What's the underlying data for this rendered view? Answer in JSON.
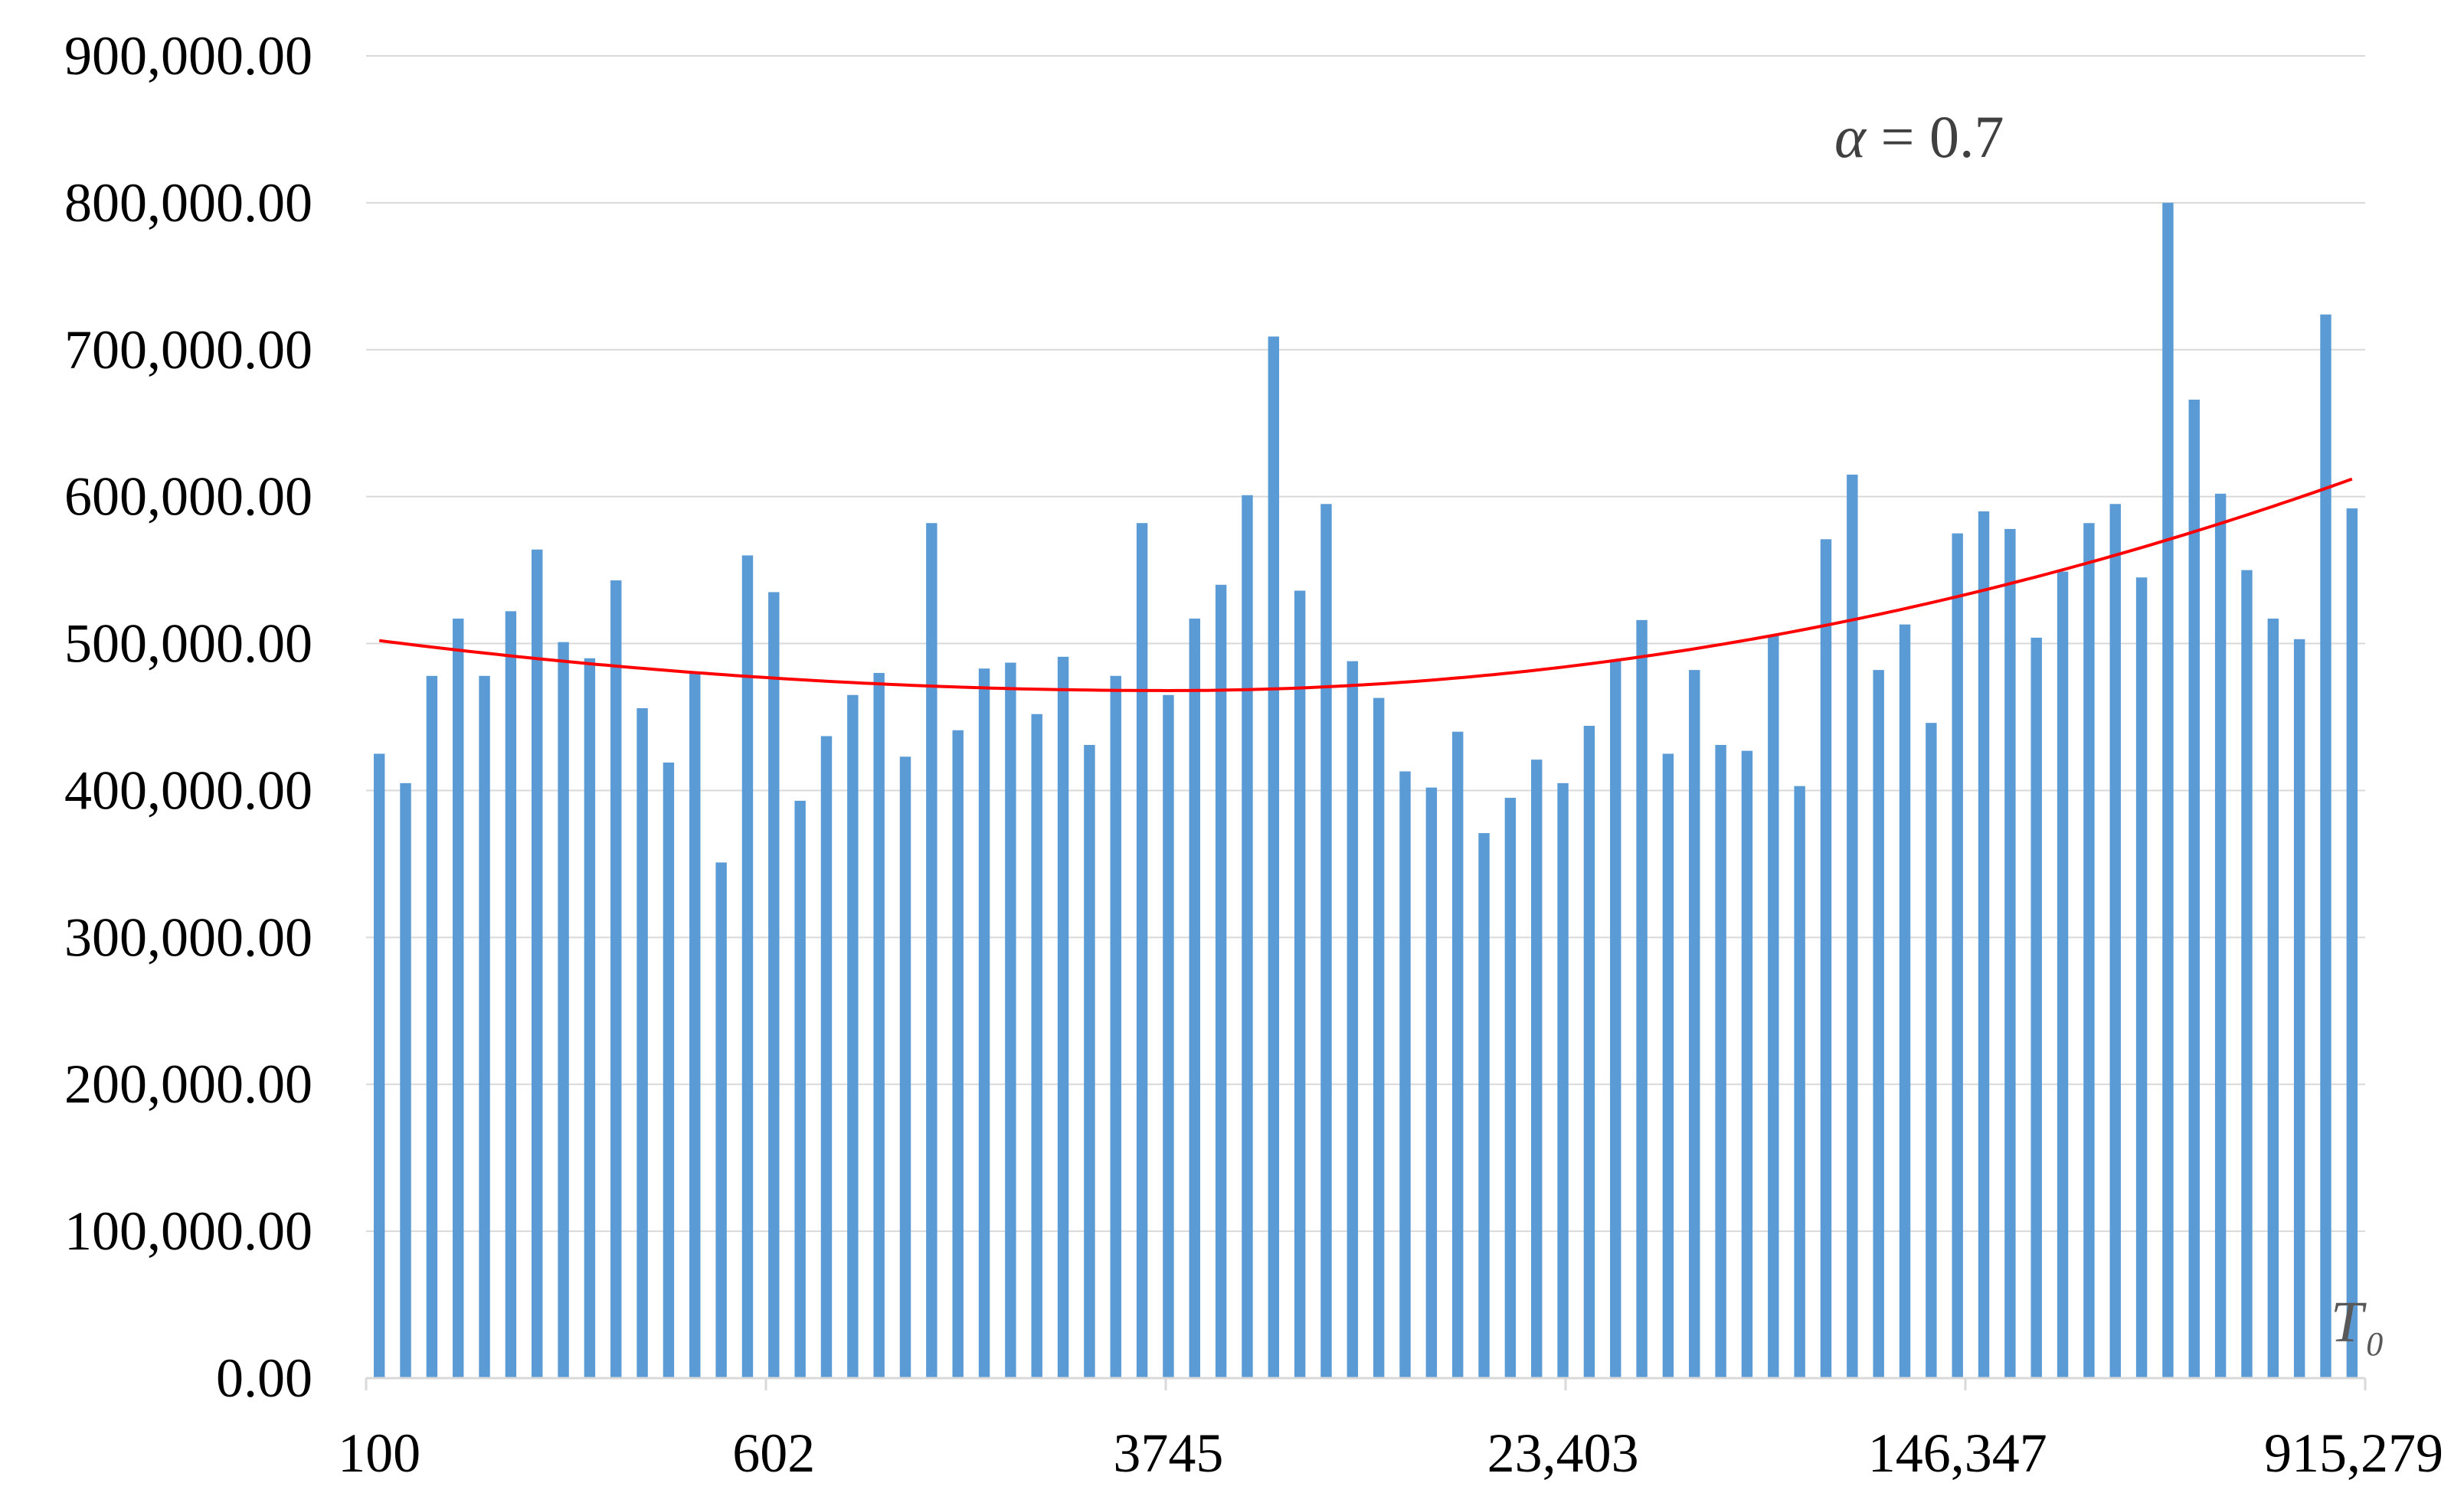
{
  "chart_data": {
    "type": "bar",
    "y_ticks": [
      "0.00",
      "100,000.00",
      "200,000.00",
      "300,000.00",
      "400,000.00",
      "500,000.00",
      "600,000.00",
      "700,000.00",
      "800,000.00",
      "900,000.00"
    ],
    "x_tick_labels": [
      {
        "index": 0,
        "label": "100"
      },
      {
        "index": 15,
        "label": "602"
      },
      {
        "index": 30,
        "label": "3745"
      },
      {
        "index": 45,
        "label": "23,403"
      },
      {
        "index": 60,
        "label": "146,347"
      },
      {
        "index": 75,
        "label": "915,279"
      }
    ],
    "x_axis_symbol": "T",
    "x_axis_subscript": "0",
    "annotation": {
      "variable": "α",
      "text": " = 0.7"
    },
    "ylim": [
      0,
      900000
    ],
    "grid": true,
    "bar_color": "#5B9BD5",
    "trend_color": "#FF0000",
    "values": [
      425000,
      405000,
      478000,
      517000,
      478000,
      522000,
      564000,
      501000,
      490000,
      543000,
      456000,
      419000,
      481000,
      351000,
      560000,
      535000,
      393000,
      437000,
      465000,
      480000,
      423000,
      582000,
      441000,
      483000,
      487000,
      452000,
      491000,
      431000,
      478000,
      582000,
      465000,
      517000,
      540000,
      601000,
      709000,
      536000,
      595000,
      488000,
      463000,
      413000,
      402000,
      440000,
      371000,
      395000,
      421000,
      405000,
      444000,
      488000,
      516000,
      425000,
      482000,
      431000,
      427000,
      506000,
      403000,
      571000,
      615000,
      482000,
      513000,
      446000,
      575000,
      590000,
      578000,
      504000,
      549000,
      582000,
      595000,
      545000,
      800000,
      666000,
      602000,
      550000,
      517000,
      503000,
      724000,
      592000
    ],
    "trend": {
      "type": "polynomial",
      "start": 502000,
      "min": 468000,
      "min_index": 30,
      "end": 612000
    }
  }
}
